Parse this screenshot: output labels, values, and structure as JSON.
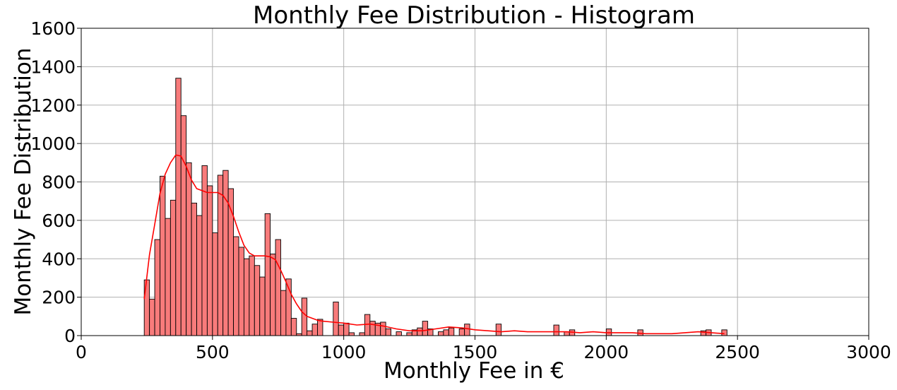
{
  "chart_data": {
    "type": "bar",
    "title": "Monthly Fee Distribution - Histogram",
    "xlabel": "Monthly Fee in €",
    "ylabel": "Monthly Fee Distribution",
    "xlim": [
      0,
      3000
    ],
    "ylim": [
      0,
      1600
    ],
    "xticks": [
      0,
      500,
      1000,
      1500,
      2000,
      2500,
      3000
    ],
    "yticks": [
      0,
      200,
      400,
      600,
      800,
      1000,
      1200,
      1400,
      1600
    ],
    "grid": true,
    "bin_width": 20,
    "bar_color": "#f87b7b",
    "edge_color": "#000000",
    "kde_color": "#ff0000",
    "bins_start": [
      240,
      260,
      280,
      300,
      320,
      340,
      360,
      380,
      400,
      420,
      440,
      460,
      480,
      500,
      520,
      540,
      560,
      580,
      600,
      620,
      640,
      660,
      680,
      700,
      720,
      740,
      760,
      780,
      800,
      820,
      840,
      860,
      880,
      900,
      920,
      940,
      960,
      980,
      1000,
      1020,
      1040,
      1060,
      1080,
      1100,
      1120,
      1140,
      1160,
      1180,
      1200,
      1220,
      1240,
      1260,
      1280,
      1300,
      1320,
      1340,
      1360,
      1380,
      1400,
      1420,
      1440,
      1460,
      1480,
      1500,
      1520,
      1540,
      1560,
      1580,
      1600,
      1620,
      1640,
      1660,
      1680,
      1700,
      1720,
      1740,
      1760,
      1780,
      1800,
      1820,
      1840,
      1860,
      1880,
      1900,
      1920,
      1940,
      1960,
      1980,
      2000,
      2020,
      2040,
      2060,
      2080,
      2100,
      2120,
      2140,
      2160,
      2180,
      2200,
      2220,
      2240,
      2260,
      2280,
      2300,
      2320,
      2340,
      2360,
      2380,
      2400,
      2420,
      2440
    ],
    "counts": [
      290,
      190,
      500,
      830,
      610,
      705,
      1340,
      1145,
      900,
      690,
      625,
      885,
      780,
      535,
      835,
      860,
      765,
      515,
      460,
      400,
      415,
      365,
      305,
      635,
      425,
      500,
      235,
      295,
      90,
      10,
      195,
      25,
      60,
      85,
      0,
      0,
      175,
      55,
      65,
      15,
      0,
      15,
      110,
      75,
      65,
      70,
      35,
      0,
      20,
      0,
      15,
      30,
      40,
      75,
      35,
      0,
      20,
      30,
      40,
      0,
      35,
      60,
      0,
      0,
      0,
      0,
      0,
      60,
      0,
      0,
      0,
      0,
      0,
      0,
      0,
      0,
      0,
      0,
      55,
      0,
      20,
      30,
      0,
      0,
      0,
      0,
      0,
      0,
      35,
      0,
      0,
      0,
      0,
      0,
      30,
      0,
      0,
      0,
      0,
      0,
      0,
      0,
      0,
      0,
      0,
      0,
      25,
      30,
      0,
      0,
      30
    ],
    "kde_x": [
      240,
      260,
      280,
      300,
      320,
      340,
      360,
      380,
      400,
      420,
      440,
      460,
      480,
      500,
      520,
      540,
      560,
      580,
      600,
      620,
      640,
      660,
      680,
      700,
      720,
      740,
      760,
      780,
      800,
      820,
      840,
      860,
      880,
      900,
      920,
      960,
      1000,
      1050,
      1100,
      1150,
      1200,
      1250,
      1300,
      1350,
      1400,
      1450,
      1500,
      1550,
      1600,
      1650,
      1700,
      1750,
      1800,
      1850,
      1900,
      1950,
      2000,
      2050,
      2100,
      2150,
      2200,
      2250,
      2300,
      2350,
      2400,
      2450
    ],
    "kde_y": [
      190,
      420,
      580,
      740,
      840,
      900,
      940,
      935,
      880,
      810,
      765,
      755,
      745,
      745,
      745,
      730,
      690,
      620,
      540,
      470,
      430,
      415,
      415,
      415,
      410,
      395,
      340,
      280,
      215,
      165,
      125,
      100,
      90,
      80,
      75,
      70,
      65,
      55,
      60,
      50,
      35,
      25,
      25,
      35,
      45,
      40,
      30,
      25,
      20,
      25,
      20,
      20,
      20,
      20,
      15,
      20,
      15,
      15,
      15,
      10,
      10,
      10,
      15,
      20,
      15,
      10
    ]
  }
}
